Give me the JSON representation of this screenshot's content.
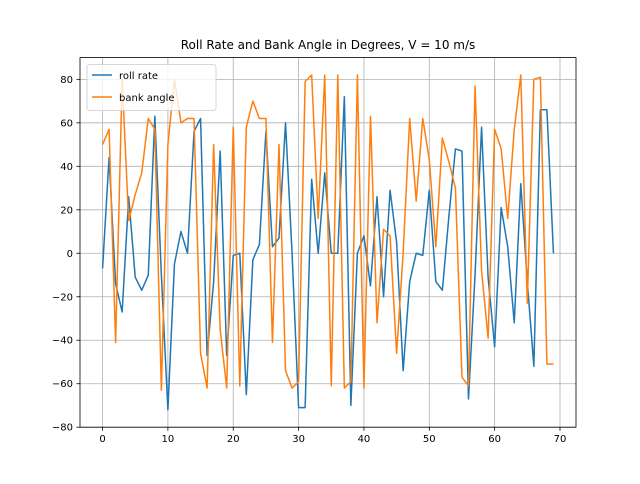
{
  "chart_data": {
    "type": "line",
    "title": "Roll Rate and Bank Angle in Degrees, V = 10 m/s",
    "xlabel": "",
    "ylabel": "",
    "xlim": [
      -3.45,
      72.45
    ],
    "ylim": [
      -80,
      90
    ],
    "xticks": [
      0,
      10,
      20,
      30,
      40,
      50,
      60,
      70
    ],
    "yticks": [
      -80,
      -60,
      -40,
      -20,
      0,
      20,
      40,
      60,
      80
    ],
    "grid": true,
    "legend_position": "top-left",
    "series": [
      {
        "name": "roll rate",
        "color": "#1f77b4",
        "x": [
          0,
          1,
          2,
          3,
          4,
          5,
          6,
          7,
          8,
          9,
          10,
          11,
          12,
          13,
          14,
          15,
          16,
          17,
          18,
          19,
          20,
          21,
          22,
          23,
          24,
          25,
          26,
          27,
          28,
          29,
          30,
          31,
          32,
          33,
          34,
          35,
          36,
          37,
          38,
          39,
          40,
          41,
          42,
          43,
          44,
          45,
          46,
          47,
          48,
          49,
          50,
          51,
          52,
          53,
          54,
          55,
          56,
          57,
          58,
          59,
          60,
          61,
          62,
          63,
          64,
          65,
          66,
          67,
          68,
          69
        ],
        "values": [
          -7,
          44,
          -14,
          -27,
          26,
          -11,
          -17,
          -10,
          63,
          -10,
          -72,
          -5,
          10,
          0,
          56,
          62,
          -47,
          -13,
          47,
          -47,
          -1,
          0,
          -65,
          -3,
          4,
          56,
          3,
          7,
          60,
          0,
          -71,
          -71,
          34,
          0,
          37,
          0,
          0,
          72,
          -70,
          0,
          8,
          -15,
          26,
          -20,
          29,
          5,
          -54,
          -13,
          0,
          -1,
          29,
          -13,
          -17,
          17,
          48,
          47,
          -67,
          -10,
          58,
          -11,
          -43,
          21,
          3,
          -32,
          32,
          -13,
          -52,
          66,
          66,
          0
        ]
      },
      {
        "name": "bank angle",
        "color": "#ff7f0e",
        "x": [
          0,
          1,
          2,
          3,
          4,
          5,
          6,
          7,
          8,
          9,
          10,
          11,
          12,
          13,
          14,
          15,
          16,
          17,
          18,
          19,
          20,
          21,
          22,
          23,
          24,
          25,
          26,
          27,
          28,
          29,
          30,
          31,
          32,
          33,
          34,
          35,
          36,
          37,
          38,
          39,
          40,
          41,
          42,
          43,
          44,
          45,
          46,
          47,
          48,
          49,
          50,
          51,
          52,
          53,
          54,
          55,
          56,
          57,
          58,
          59,
          60,
          61,
          62,
          63,
          64,
          65,
          66,
          67,
          68,
          69
        ],
        "values": [
          50,
          57,
          -41,
          80,
          15,
          27,
          37,
          62,
          57,
          -63,
          50,
          80,
          60,
          62,
          62,
          -46,
          -62,
          50,
          -35,
          -62,
          58,
          -61,
          58,
          70,
          62,
          62,
          -41,
          50,
          -54,
          -62,
          -59,
          79,
          82,
          16,
          82,
          -61,
          82,
          -62,
          -59,
          82,
          -62,
          63,
          -32,
          11,
          8,
          -46,
          0,
          62,
          24,
          62,
          43,
          3,
          53,
          42,
          30,
          -57,
          -61,
          77,
          -8,
          -39,
          57,
          48,
          16,
          57,
          82,
          -23,
          80,
          81,
          -51,
          -51
        ]
      }
    ]
  }
}
